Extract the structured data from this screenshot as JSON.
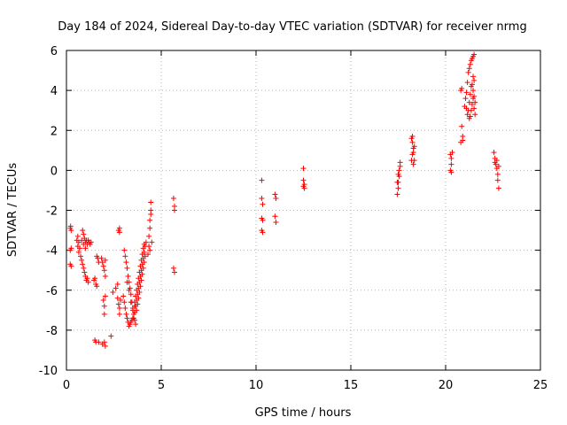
{
  "chart_data": {
    "type": "scatter",
    "title": "Day 184 of 2024, Sidereal Day-to-day VTEC variation (SDTVAR) for receiver nrmg",
    "xlabel": "GPS time / hours",
    "ylabel": "SDTVAR / TECUs",
    "xlim": [
      0,
      25
    ],
    "ylim": [
      -10,
      6
    ],
    "xticks": [
      0,
      5,
      10,
      15,
      20,
      25
    ],
    "yticks": [
      -10,
      -8,
      -6,
      -4,
      -2,
      0,
      2,
      4,
      6
    ],
    "xtick_labels": [
      "0",
      "5",
      "10",
      "15",
      "20",
      "25"
    ],
    "ytick_labels": [
      "-10",
      "-8",
      "-6",
      "-4",
      "-2",
      "0",
      "2",
      "4",
      "6"
    ],
    "grid": true,
    "marker": "+",
    "color": "#ff0000",
    "series": [
      {
        "name": "SDTVAR",
        "points": [
          [
            0.2,
            -2.9
          ],
          [
            0.22,
            -2.8
          ],
          [
            0.25,
            -3.0
          ],
          [
            0.2,
            -4.0
          ],
          [
            0.25,
            -3.9
          ],
          [
            0.2,
            -4.7
          ],
          [
            0.25,
            -4.8
          ],
          [
            0.55,
            -3.5
          ],
          [
            0.6,
            -3.8
          ],
          [
            0.65,
            -4.1
          ],
          [
            0.7,
            -3.9
          ],
          [
            0.6,
            -3.3
          ],
          [
            0.65,
            -3.6
          ],
          [
            0.75,
            -4.3
          ],
          [
            0.8,
            -4.5
          ],
          [
            0.85,
            -4.7
          ],
          [
            0.9,
            -4.9
          ],
          [
            0.95,
            -5.1
          ],
          [
            1.0,
            -5.3
          ],
          [
            1.05,
            -5.5
          ],
          [
            1.1,
            -5.4
          ],
          [
            1.15,
            -5.6
          ],
          [
            0.85,
            -3.0
          ],
          [
            0.9,
            -3.2
          ],
          [
            0.95,
            -3.4
          ],
          [
            1.0,
            -3.6
          ],
          [
            1.05,
            -3.5
          ],
          [
            1.1,
            -3.7
          ],
          [
            1.15,
            -3.5
          ],
          [
            1.2,
            -3.6
          ],
          [
            1.25,
            -3.7
          ],
          [
            1.3,
            -3.6
          ],
          [
            0.8,
            -3.5
          ],
          [
            0.9,
            -3.7
          ],
          [
            1.0,
            -3.9
          ],
          [
            1.5,
            -5.4
          ],
          [
            1.55,
            -5.7
          ],
          [
            1.6,
            -5.8
          ],
          [
            1.45,
            -5.5
          ],
          [
            1.6,
            -4.3
          ],
          [
            1.65,
            -4.4
          ],
          [
            1.7,
            -4.6
          ],
          [
            1.5,
            -8.5
          ],
          [
            1.55,
            -8.6
          ],
          [
            1.7,
            -8.6
          ],
          [
            1.9,
            -8.7
          ],
          [
            2.0,
            -8.6
          ],
          [
            2.05,
            -8.8
          ],
          [
            1.85,
            -4.4
          ],
          [
            1.9,
            -4.6
          ],
          [
            1.95,
            -4.8
          ],
          [
            2.0,
            -5.0
          ],
          [
            2.05,
            -5.3
          ],
          [
            1.95,
            -6.5
          ],
          [
            2.0,
            -6.8
          ],
          [
            2.0,
            -7.2
          ],
          [
            2.05,
            -6.3
          ],
          [
            2.05,
            -4.5
          ],
          [
            2.35,
            -8.3
          ],
          [
            2.45,
            -6.1
          ],
          [
            2.6,
            -5.9
          ],
          [
            2.7,
            -5.7
          ],
          [
            2.75,
            -3.0
          ],
          [
            2.8,
            -2.9
          ],
          [
            2.8,
            -3.1
          ],
          [
            2.7,
            -6.4
          ],
          [
            2.75,
            -6.7
          ],
          [
            2.8,
            -6.9
          ],
          [
            2.8,
            -7.2
          ],
          [
            2.85,
            -6.5
          ],
          [
            3.05,
            -4.0
          ],
          [
            3.1,
            -4.3
          ],
          [
            3.15,
            -4.6
          ],
          [
            3.2,
            -4.9
          ],
          [
            3.25,
            -5.3
          ],
          [
            3.3,
            -5.6
          ],
          [
            3.35,
            -5.9
          ],
          [
            3.4,
            -6.2
          ],
          [
            3.45,
            -6.6
          ],
          [
            3.5,
            -6.9
          ],
          [
            3.55,
            -7.2
          ],
          [
            3.6,
            -7.5
          ],
          [
            3.65,
            -7.7
          ],
          [
            3.0,
            -6.3
          ],
          [
            3.05,
            -6.6
          ],
          [
            3.1,
            -6.9
          ],
          [
            3.15,
            -7.2
          ],
          [
            3.2,
            -7.4
          ],
          [
            3.25,
            -7.6
          ],
          [
            3.3,
            -7.8
          ],
          [
            3.35,
            -7.7
          ],
          [
            3.4,
            -7.6
          ],
          [
            3.45,
            -7.5
          ],
          [
            3.5,
            -7.4
          ],
          [
            3.2,
            -5.6
          ],
          [
            3.3,
            -6.0
          ],
          [
            3.4,
            -6.6
          ],
          [
            3.5,
            -7.0
          ],
          [
            3.6,
            -6.8
          ],
          [
            3.55,
            -7.4
          ],
          [
            3.6,
            -7.1
          ],
          [
            3.65,
            -6.8
          ],
          [
            3.7,
            -6.5
          ],
          [
            3.75,
            -6.2
          ],
          [
            3.8,
            -5.9
          ],
          [
            3.85,
            -5.6
          ],
          [
            3.9,
            -5.3
          ],
          [
            3.95,
            -5.0
          ],
          [
            4.0,
            -4.7
          ],
          [
            4.05,
            -4.4
          ],
          [
            4.1,
            -4.1
          ],
          [
            4.15,
            -3.8
          ],
          [
            4.2,
            -3.6
          ],
          [
            3.6,
            -6.6
          ],
          [
            3.65,
            -6.3
          ],
          [
            3.7,
            -6.0
          ],
          [
            3.75,
            -5.7
          ],
          [
            3.8,
            -5.4
          ],
          [
            3.85,
            -5.1
          ],
          [
            3.9,
            -4.8
          ],
          [
            3.95,
            -4.5
          ],
          [
            4.0,
            -4.2
          ],
          [
            4.05,
            -3.9
          ],
          [
            4.1,
            -3.7
          ],
          [
            3.7,
            -7.0
          ],
          [
            3.75,
            -6.7
          ],
          [
            3.8,
            -6.4
          ],
          [
            3.85,
            -6.1
          ],
          [
            3.9,
            -5.8
          ],
          [
            3.95,
            -5.5
          ],
          [
            4.0,
            -5.2
          ],
          [
            4.05,
            -4.9
          ],
          [
            4.1,
            -4.6
          ],
          [
            4.15,
            -4.3
          ],
          [
            4.3,
            -4.2
          ],
          [
            4.35,
            -3.8
          ],
          [
            4.35,
            -3.3
          ],
          [
            4.4,
            -2.9
          ],
          [
            4.4,
            -2.5
          ],
          [
            4.45,
            -2.2
          ],
          [
            4.45,
            -2.0
          ],
          [
            4.45,
            -1.6
          ],
          [
            4.5,
            -3.6
          ],
          [
            4.4,
            -4.0
          ],
          [
            5.65,
            -1.4
          ],
          [
            5.7,
            -1.8
          ],
          [
            5.7,
            -2.0
          ],
          [
            5.65,
            -4.9
          ],
          [
            5.7,
            -5.1
          ],
          [
            10.3,
            -0.5
          ],
          [
            10.3,
            -1.4
          ],
          [
            10.35,
            -1.7
          ],
          [
            10.3,
            -2.4
          ],
          [
            10.35,
            -2.5
          ],
          [
            10.3,
            -3.0
          ],
          [
            10.35,
            -3.1
          ],
          [
            11.0,
            -1.2
          ],
          [
            11.05,
            -1.4
          ],
          [
            11.0,
            -2.3
          ],
          [
            11.05,
            -2.6
          ],
          [
            12.5,
            0.1
          ],
          [
            12.5,
            -0.5
          ],
          [
            12.55,
            -0.7
          ],
          [
            12.5,
            -0.8
          ],
          [
            12.55,
            -0.9
          ],
          [
            17.45,
            -1.2
          ],
          [
            17.5,
            -0.9
          ],
          [
            17.5,
            -0.6
          ],
          [
            17.55,
            -0.3
          ],
          [
            17.55,
            0.0
          ],
          [
            17.6,
            0.2
          ],
          [
            17.6,
            0.4
          ],
          [
            17.45,
            -0.6
          ],
          [
            17.5,
            -0.2
          ],
          [
            18.2,
            1.6
          ],
          [
            18.25,
            1.4
          ],
          [
            18.3,
            1.1
          ],
          [
            18.25,
            0.8
          ],
          [
            18.2,
            0.5
          ],
          [
            18.3,
            0.3
          ],
          [
            18.35,
            0.5
          ],
          [
            18.25,
            1.7
          ],
          [
            18.35,
            1.2
          ],
          [
            18.3,
            0.9
          ],
          [
            20.25,
            0.8
          ],
          [
            20.3,
            0.6
          ],
          [
            20.3,
            0.3
          ],
          [
            20.25,
            0.0
          ],
          [
            20.3,
            -0.1
          ],
          [
            20.35,
            0.9
          ],
          [
            20.8,
            4.0
          ],
          [
            20.85,
            4.1
          ],
          [
            20.85,
            2.2
          ],
          [
            20.9,
            1.7
          ],
          [
            20.8,
            1.4
          ],
          [
            20.9,
            1.5
          ],
          [
            21.0,
            3.2
          ],
          [
            21.05,
            3.6
          ],
          [
            21.1,
            3.9
          ],
          [
            21.15,
            4.4
          ],
          [
            21.2,
            4.9
          ],
          [
            21.25,
            5.1
          ],
          [
            21.3,
            5.3
          ],
          [
            21.35,
            5.5
          ],
          [
            21.4,
            5.6
          ],
          [
            21.45,
            5.7
          ],
          [
            21.5,
            5.8
          ],
          [
            21.1,
            3.1
          ],
          [
            21.15,
            2.8
          ],
          [
            21.2,
            3.0
          ],
          [
            21.25,
            3.4
          ],
          [
            21.3,
            3.8
          ],
          [
            21.35,
            4.2
          ],
          [
            21.4,
            4.3
          ],
          [
            21.45,
            4.0
          ],
          [
            21.5,
            3.7
          ],
          [
            21.55,
            3.4
          ],
          [
            21.25,
            2.6
          ],
          [
            21.3,
            2.7
          ],
          [
            21.35,
            3.0
          ],
          [
            21.4,
            3.3
          ],
          [
            21.45,
            3.6
          ],
          [
            21.5,
            3.1
          ],
          [
            21.55,
            2.8
          ],
          [
            21.5,
            4.5
          ],
          [
            21.45,
            4.7
          ],
          [
            22.55,
            0.9
          ],
          [
            22.6,
            0.6
          ],
          [
            22.65,
            0.3
          ],
          [
            22.7,
            0.1
          ],
          [
            22.75,
            -0.2
          ],
          [
            22.75,
            -0.5
          ],
          [
            22.8,
            -0.9
          ],
          [
            22.6,
            0.4
          ],
          [
            22.7,
            0.5
          ],
          [
            22.8,
            0.2
          ]
        ]
      }
    ]
  }
}
